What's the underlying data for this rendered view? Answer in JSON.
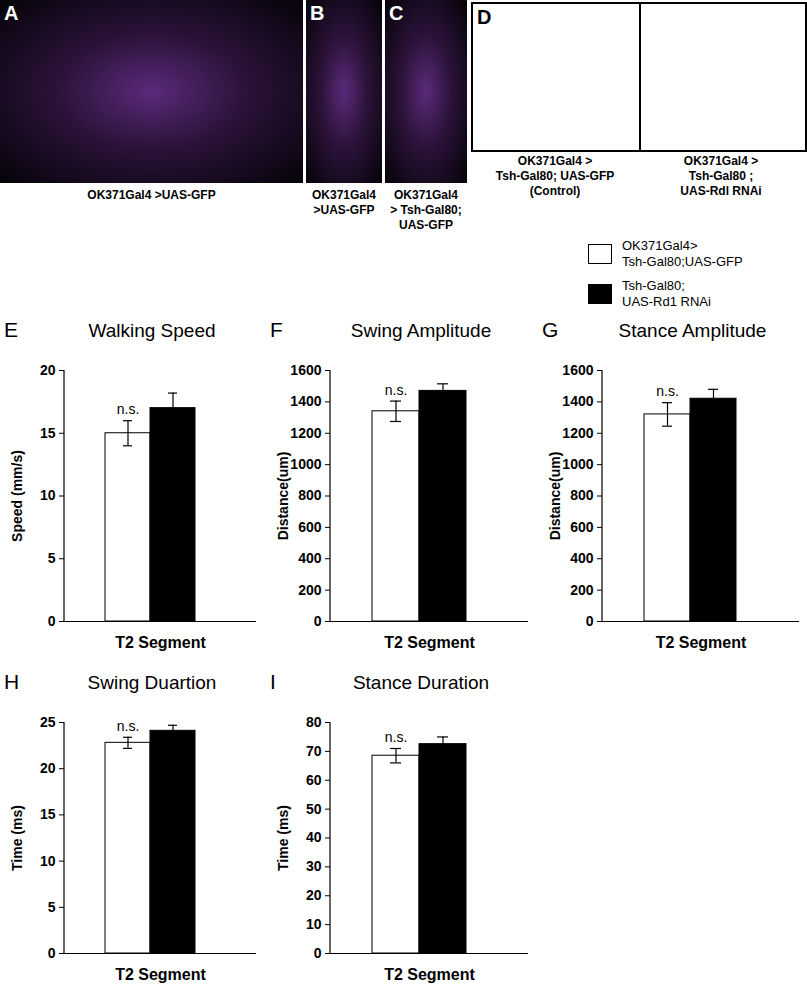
{
  "panels": [
    {
      "letter": "A",
      "captions": [
        [
          "OK371Gal4 >UAS-GFP"
        ]
      ]
    },
    {
      "letter": "B",
      "captions": [
        [
          "OK371Gal4",
          ">UAS-GFP"
        ]
      ]
    },
    {
      "letter": "C",
      "captions": [
        [
          "OK371Gal4",
          "> Tsh-Gal80;",
          "UAS-GFP"
        ]
      ]
    },
    {
      "letter": "D",
      "captions": [
        [
          "OK371Gal4 >",
          "Tsh-Gal80; UAS-GFP",
          "(Control)"
        ],
        [
          "OK371Gal4 >",
          "Tsh-Gal80 ;",
          "UAS-Rdl RNAi"
        ]
      ]
    }
  ],
  "chart_data": [
    {
      "type": "bar",
      "letter": "E",
      "title": "Walking Speed",
      "categories": [
        "T2 Segment"
      ],
      "ylabel": "Speed (mm/s)",
      "ylim": [
        0,
        20
      ],
      "yticks": [
        0,
        5,
        10,
        15,
        20
      ],
      "annotation": "n.s.",
      "series": [
        {
          "name": "OK371Gal4>\nTsh-Gal80;UAS-GFP",
          "color": "#ffffff",
          "values": [
            15.0
          ],
          "errors": [
            1.0
          ]
        },
        {
          "name": "Tsh-Gal80;\nUAS-Rd1 RNAi",
          "color": "#000000",
          "values": [
            17.0
          ],
          "errors": [
            1.2
          ]
        }
      ]
    },
    {
      "type": "bar",
      "letter": "F",
      "title": "Swing Amplitude",
      "categories": [
        "T2 Segment"
      ],
      "ylabel": "Distance(um)",
      "ylim": [
        0,
        1600
      ],
      "yticks": [
        0,
        200,
        400,
        600,
        800,
        1000,
        1200,
        1400,
        1600
      ],
      "annotation": "n.s.",
      "series": [
        {
          "name": "OK371Gal4>\nTsh-Gal80;UAS-GFP",
          "color": "#ffffff",
          "values": [
            1340
          ],
          "errors": [
            65
          ]
        },
        {
          "name": "Tsh-Gal80;\nUAS-Rd1 RNAi",
          "color": "#000000",
          "values": [
            1470
          ],
          "errors": [
            45
          ]
        }
      ]
    },
    {
      "type": "bar",
      "letter": "G",
      "title": "Stance Amplitude",
      "categories": [
        "T2 Segment"
      ],
      "ylabel": "Distance(um)",
      "ylim": [
        0,
        1600
      ],
      "yticks": [
        0,
        200,
        400,
        600,
        800,
        1000,
        1200,
        1400,
        1600
      ],
      "annotation": "n.s.",
      "series": [
        {
          "name": "OK371Gal4>\nTsh-Gal80;UAS-GFP",
          "color": "#ffffff",
          "values": [
            1320
          ],
          "errors": [
            75
          ]
        },
        {
          "name": "Tsh-Gal80;\nUAS-Rd1 RNAi",
          "color": "#000000",
          "values": [
            1420
          ],
          "errors": [
            60
          ]
        }
      ]
    },
    {
      "type": "bar",
      "letter": "H",
      "title": "Swing Duartion",
      "categories": [
        "T2 Segment"
      ],
      "ylabel": "Time (ms)",
      "ylim": [
        0,
        25
      ],
      "yticks": [
        0,
        5,
        10,
        15,
        20,
        25
      ],
      "annotation": "n.s.",
      "series": [
        {
          "name": "OK371Gal4>\nTsh-Gal80;UAS-GFP",
          "color": "#ffffff",
          "values": [
            22.8
          ],
          "errors": [
            0.6
          ]
        },
        {
          "name": "Tsh-Gal80;\nUAS-Rd1 RNAi",
          "color": "#000000",
          "values": [
            24.1
          ],
          "errors": [
            0.6
          ]
        }
      ]
    },
    {
      "type": "bar",
      "letter": "I",
      "title": "Stance Duration",
      "categories": [
        "T2 Segment"
      ],
      "ylabel": "Time (ms)",
      "ylim": [
        0,
        80
      ],
      "yticks": [
        0,
        10,
        20,
        30,
        40,
        50,
        60,
        70,
        80
      ],
      "annotation": "n.s.",
      "series": [
        {
          "name": "OK371Gal4>\nTsh-Gal80;UAS-GFP",
          "color": "#ffffff",
          "values": [
            68.5
          ],
          "errors": [
            2.5
          ]
        },
        {
          "name": "Tsh-Gal80;\nUAS-Rd1 RNAi",
          "color": "#000000",
          "values": [
            72.5
          ],
          "errors": [
            2.5
          ]
        }
      ]
    }
  ]
}
